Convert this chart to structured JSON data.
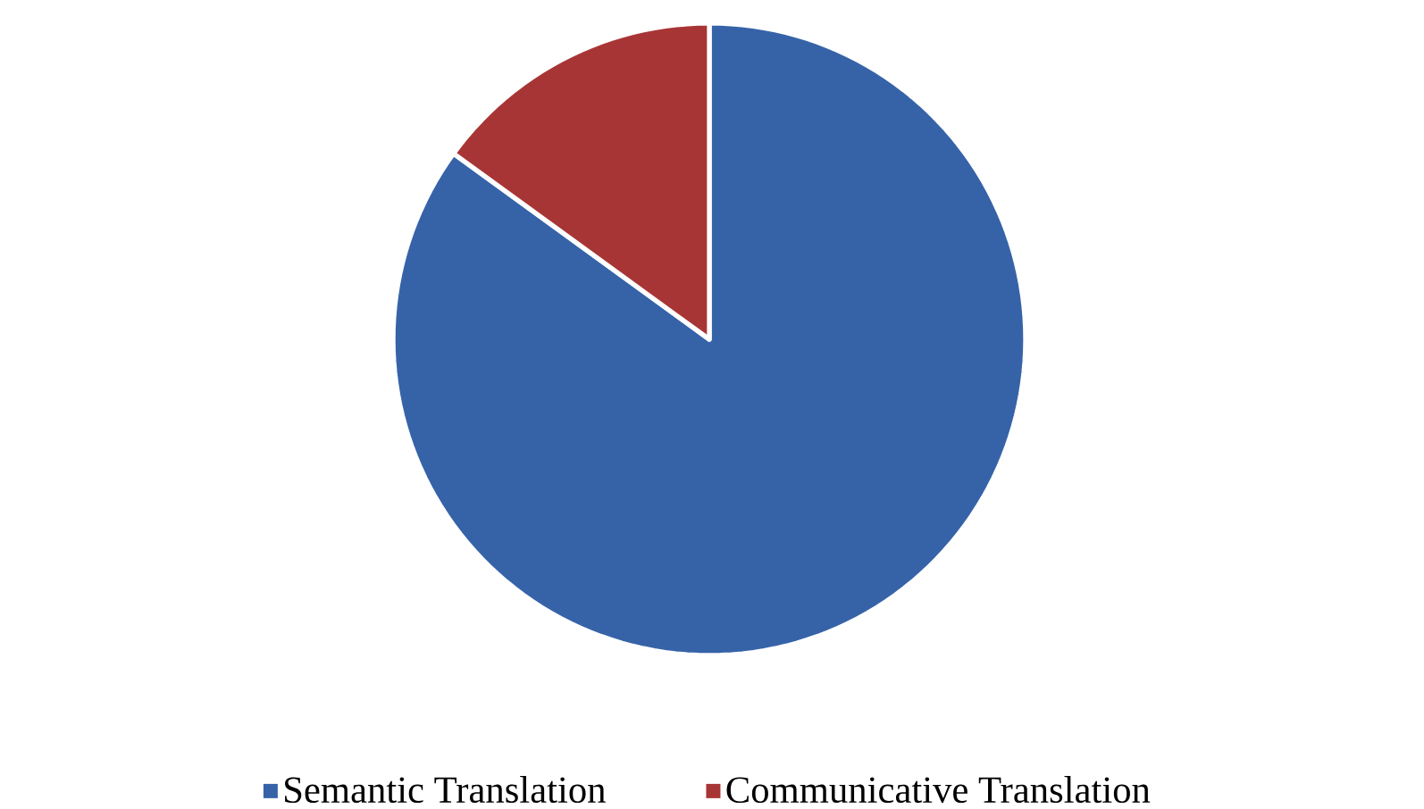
{
  "chart_data": {
    "type": "pie",
    "categories": [
      "Semantic Translation",
      "Communicative Translation"
    ],
    "values": [
      85,
      15
    ],
    "colors": [
      "#3663a8",
      "#a83535"
    ],
    "legend": "bottom"
  }
}
